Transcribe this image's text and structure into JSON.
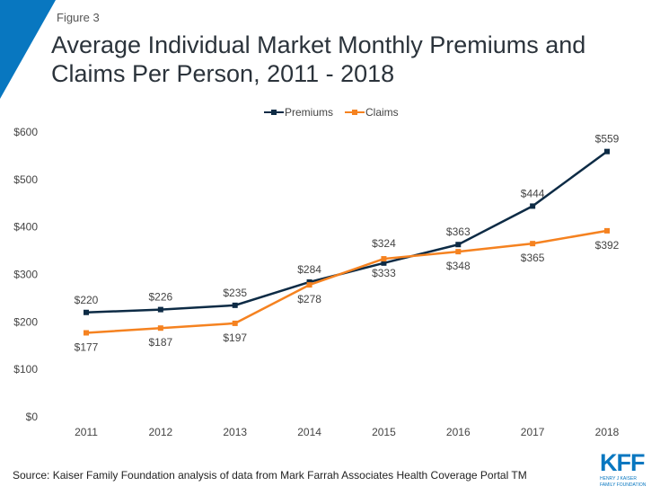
{
  "figure_label": "Figure 3",
  "title": "Average Individual Market Monthly Premiums and Claims Per Person, 2011 - 2018",
  "source": "Source: Kaiser Family Foundation analysis of data from Mark Farrah Associates Health Coverage Portal TM",
  "logo": {
    "text": "KFF",
    "subtext": "HENRY J KAISER FAMILY FOUNDATION"
  },
  "colors": {
    "accent": "#0877c0",
    "premiums": "#0d2b45",
    "claims": "#f58220"
  },
  "chart_data": {
    "type": "line",
    "categories": [
      "2011",
      "2012",
      "2013",
      "2014",
      "2015",
      "2016",
      "2017",
      "2018"
    ],
    "series": [
      {
        "name": "Premiums",
        "values": [
          220,
          226,
          235,
          284,
          324,
          363,
          444,
          559
        ],
        "labels": [
          "$220",
          "$226",
          "$235",
          "$284",
          "$324",
          "$363",
          "$444",
          "$559"
        ]
      },
      {
        "name": "Claims",
        "values": [
          177,
          187,
          197,
          278,
          333,
          348,
          365,
          392
        ],
        "labels": [
          "$177",
          "$187",
          "$197",
          "$278",
          "$333",
          "$348",
          "$365",
          "$392"
        ]
      }
    ],
    "ylim": [
      0,
      600
    ],
    "yticks": [
      0,
      100,
      200,
      300,
      400,
      500,
      600
    ],
    "ytick_labels": [
      "$0",
      "$100",
      "$200",
      "$300",
      "$400",
      "$500",
      "$600"
    ],
    "legend": "top",
    "grid": false
  }
}
